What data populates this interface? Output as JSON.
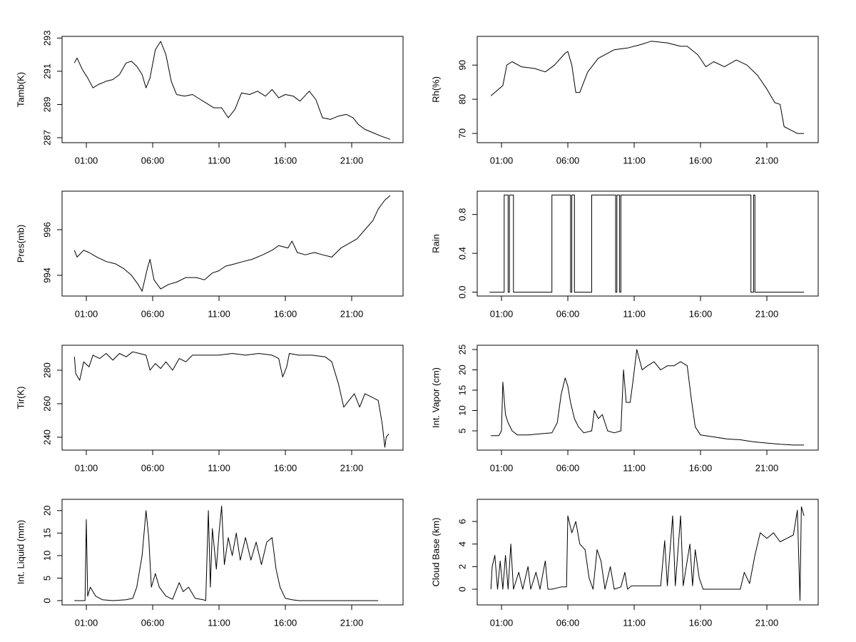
{
  "chart_data": [
    {
      "type": "line",
      "ylabel": "Tamb(K)",
      "color": "#000000",
      "x": [
        0.1,
        0.3,
        0.7,
        1.1,
        1.5,
        1.9,
        2.5,
        3.0,
        3.5,
        4.0,
        4.4,
        4.8,
        5.2,
        5.5,
        5.8,
        6.2,
        6.6,
        7.0,
        7.4,
        7.8,
        8.4,
        9.0,
        9.6,
        10.0,
        10.6,
        11.2,
        11.7,
        12.2,
        12.7,
        13.3,
        13.9,
        14.5,
        15.0,
        15.5,
        16.0,
        16.6,
        17.1,
        17.8,
        18.3,
        18.8,
        19.4,
        20.0,
        20.6,
        21.1,
        21.5,
        22.0,
        22.6,
        23.2,
        23.9
      ],
      "values": [
        291.5,
        291.8,
        291.1,
        290.6,
        290.0,
        290.2,
        290.4,
        290.5,
        290.8,
        291.5,
        291.6,
        291.3,
        290.8,
        290.0,
        290.6,
        292.3,
        292.8,
        292.0,
        290.4,
        289.6,
        289.5,
        289.6,
        289.3,
        289.1,
        288.8,
        288.8,
        288.2,
        288.7,
        289.7,
        289.6,
        289.8,
        289.5,
        289.9,
        289.4,
        289.6,
        289.5,
        289.2,
        289.8,
        289.3,
        288.2,
        288.1,
        288.3,
        288.4,
        288.2,
        287.8,
        287.5,
        287.3,
        287.1,
        286.9
      ],
      "xlim": [
        -0.83,
        24.87
      ],
      "ylim": [
        286.7,
        293.1
      ],
      "yticks": [
        287,
        289,
        291,
        293
      ],
      "xticks": [
        {
          "value": 1,
          "label": "01:00"
        },
        {
          "value": 6,
          "label": "06:00"
        },
        {
          "value": 11,
          "label": "11:00"
        },
        {
          "value": 16,
          "label": "16:00"
        },
        {
          "value": 21,
          "label": "21:00"
        }
      ]
    },
    {
      "type": "line",
      "ylabel": "Rh(%)",
      "color": "#000000",
      "x": [
        0.2,
        0.8,
        1.1,
        1.4,
        1.8,
        2.5,
        3.5,
        4.3,
        5.0,
        5.8,
        6.0,
        6.3,
        6.6,
        6.9,
        7.5,
        8.3,
        9.5,
        10.5,
        11.5,
        12.3,
        13.5,
        14.5,
        15.0,
        15.8,
        16.4,
        17.0,
        17.8,
        18.7,
        19.5,
        20.3,
        21.0,
        21.6,
        22.0,
        22.3,
        22.8,
        23.3,
        23.8
      ],
      "values": [
        81,
        83,
        84,
        90,
        91,
        89.5,
        89,
        88,
        90,
        93.5,
        94,
        90,
        82,
        82,
        88,
        92,
        94.5,
        95,
        96,
        97,
        96.5,
        95.5,
        95.5,
        93,
        89.5,
        91,
        89.5,
        91.5,
        90,
        87,
        83,
        79,
        78.5,
        72,
        71,
        70,
        70
      ],
      "xlim": [
        -0.83,
        24.87
      ],
      "ylim": [
        67.3,
        98.4
      ],
      "yticks": [
        70,
        80,
        90
      ],
      "xticks": [
        {
          "value": 1,
          "label": "01:00"
        },
        {
          "value": 6,
          "label": "06:00"
        },
        {
          "value": 11,
          "label": "11:00"
        },
        {
          "value": 16,
          "label": "16:00"
        },
        {
          "value": 21,
          "label": "21:00"
        }
      ]
    },
    {
      "type": "line",
      "ylabel": "Pres(mb)",
      "color": "#000000",
      "x": [
        0.1,
        0.3,
        0.8,
        1.2,
        1.8,
        2.5,
        3.2,
        3.8,
        4.4,
        4.9,
        5.2,
        5.6,
        5.8,
        6.1,
        6.6,
        7.2,
        7.8,
        8.5,
        9.3,
        9.9,
        10.5,
        11.0,
        11.5,
        12.2,
        12.8,
        13.5,
        14.3,
        15.0,
        15.5,
        16.2,
        16.5,
        16.9,
        17.5,
        18.2,
        18.8,
        19.5,
        20.2,
        20.8,
        21.4,
        22.0,
        22.6,
        23.0,
        23.5,
        23.9
      ],
      "values": [
        995.1,
        994.8,
        995.1,
        995.0,
        994.8,
        994.6,
        994.5,
        994.3,
        994.0,
        993.6,
        993.3,
        994.3,
        994.7,
        993.8,
        993.4,
        993.6,
        993.7,
        993.9,
        993.9,
        993.8,
        994.1,
        994.2,
        994.4,
        994.5,
        994.6,
        994.7,
        994.9,
        995.1,
        995.3,
        995.2,
        995.5,
        995.0,
        994.9,
        995.0,
        994.9,
        994.8,
        995.2,
        995.4,
        995.6,
        996.0,
        996.4,
        996.9,
        997.3,
        997.5
      ],
      "xlim": [
        -0.83,
        24.87
      ],
      "ylim": [
        993.09,
        997.69
      ],
      "yticks": [
        994,
        996
      ],
      "xticks": [
        {
          "value": 1,
          "label": "01:00"
        },
        {
          "value": 6,
          "label": "06:00"
        },
        {
          "value": 11,
          "label": "11:00"
        },
        {
          "value": 16,
          "label": "16:00"
        },
        {
          "value": 21,
          "label": "21:00"
        }
      ]
    },
    {
      "type": "line",
      "ylabel": "Rain",
      "color": "#000000",
      "x": [
        0.1,
        1.2,
        1.2,
        1.5,
        1.5,
        1.6,
        1.6,
        1.9,
        1.9,
        4.8,
        4.8,
        6.2,
        6.2,
        6.3,
        6.3,
        6.5,
        6.5,
        7.8,
        7.8,
        9.6,
        9.6,
        9.7,
        9.7,
        9.9,
        9.9,
        10.0,
        10.0,
        19.8,
        19.8,
        20.0,
        20.0,
        20.1,
        20.1,
        23.8
      ],
      "values": [
        0,
        0,
        1,
        1,
        0,
        0,
        1,
        1,
        0,
        0,
        1,
        1,
        0,
        0,
        1,
        1,
        0,
        0,
        1,
        1,
        0,
        0,
        1,
        1,
        0,
        0,
        1,
        1,
        0,
        0,
        1,
        1,
        0,
        0
      ],
      "xlim": [
        -0.83,
        24.87
      ],
      "ylim": [
        -0.04,
        1.04
      ],
      "yticks": [
        {
          "value": 0,
          "label": "0.0"
        },
        0.4,
        0.8
      ],
      "xticks": [
        {
          "value": 1,
          "label": "01:00"
        },
        {
          "value": 6,
          "label": "06:00"
        },
        {
          "value": 11,
          "label": "11:00"
        },
        {
          "value": 16,
          "label": "16:00"
        },
        {
          "value": 21,
          "label": "21:00"
        }
      ]
    },
    {
      "type": "line",
      "ylabel": "Tir(K)",
      "color": "#000000",
      "x": [
        0.1,
        0.2,
        0.5,
        0.8,
        1.2,
        1.5,
        2.0,
        2.5,
        3.0,
        3.5,
        4.0,
        4.5,
        5.0,
        5.5,
        5.8,
        6.2,
        6.6,
        7.0,
        7.5,
        8.0,
        8.5,
        9.0,
        10.0,
        11.0,
        12.0,
        13.0,
        14.0,
        15.0,
        15.5,
        15.8,
        16.1,
        16.3,
        17.0,
        18.0,
        19.0,
        19.5,
        20.0,
        20.4,
        20.8,
        21.2,
        21.6,
        22.0,
        22.5,
        23.0,
        23.3,
        23.5,
        23.6,
        23.8
      ],
      "values": [
        288,
        278,
        274,
        285,
        282,
        289,
        287,
        290,
        286,
        290,
        288,
        291,
        290,
        289,
        280,
        284,
        281,
        285,
        280,
        287,
        285,
        289,
        289,
        289,
        290,
        289,
        290,
        289,
        287,
        276,
        282,
        290,
        289,
        289,
        288,
        285,
        272,
        258,
        262,
        266,
        258,
        266,
        264,
        262,
        248,
        234,
        240,
        242
      ],
      "xlim": [
        -0.83,
        24.87
      ],
      "ylim": [
        232.3,
        294.9
      ],
      "yticks": [
        240,
        260,
        280
      ],
      "xticks": [
        {
          "value": 1,
          "label": "01:00"
        },
        {
          "value": 6,
          "label": "06:00"
        },
        {
          "value": 11,
          "label": "11:00"
        },
        {
          "value": 16,
          "label": "16:00"
        },
        {
          "value": 21,
          "label": "21:00"
        }
      ]
    },
    {
      "type": "line",
      "ylabel": "Int. Vapor (cm)",
      "color": "#000000",
      "x": [
        0.2,
        0.8,
        1.0,
        1.1,
        1.3,
        1.5,
        1.8,
        2.2,
        3.0,
        4.0,
        4.8,
        5.2,
        5.5,
        5.8,
        6.0,
        6.2,
        6.5,
        6.8,
        7.2,
        7.8,
        8.0,
        8.3,
        8.6,
        9.0,
        9.5,
        10.0,
        10.2,
        10.4,
        10.7,
        10.9,
        11.2,
        11.6,
        12.0,
        12.5,
        13.0,
        13.5,
        14.0,
        14.5,
        15.0,
        15.3,
        15.6,
        16.0,
        17.0,
        18.0,
        19.0,
        20.0,
        21.0,
        22.0,
        23.0,
        23.8
      ],
      "values": [
        3.8,
        3.8,
        5,
        17,
        9,
        7,
        5,
        4,
        4,
        4.3,
        4.5,
        7,
        14,
        18,
        16,
        12,
        8,
        6,
        4.5,
        5,
        10,
        8,
        9,
        5,
        4.5,
        5,
        20,
        12,
        12,
        17,
        25,
        20,
        21,
        22,
        20,
        21,
        21,
        22,
        21,
        13,
        6,
        4,
        3.5,
        3,
        2.8,
        2.3,
        2,
        1.7,
        1.5,
        1.5
      ],
      "xlim": [
        -0.83,
        24.87
      ],
      "ylim": [
        0.26,
        26.05
      ],
      "yticks": [
        5,
        10,
        15,
        20,
        25
      ],
      "xticks": [
        {
          "value": 1,
          "label": "01:00"
        },
        {
          "value": 6,
          "label": "06:00"
        },
        {
          "value": 11,
          "label": "11:00"
        },
        {
          "value": 16,
          "label": "16:00"
        },
        {
          "value": 21,
          "label": "21:00"
        }
      ]
    },
    {
      "type": "line",
      "ylabel": "Int. Liquid (mm)",
      "color": "#000000",
      "x": [
        0.1,
        0.9,
        1.0,
        1.1,
        1.3,
        1.7,
        2.2,
        3.0,
        4.0,
        4.5,
        4.8,
        5.2,
        5.5,
        5.7,
        5.9,
        6.2,
        6.5,
        7.0,
        7.5,
        8.0,
        8.3,
        8.7,
        9.2,
        9.8,
        10.0,
        10.2,
        10.35,
        10.5,
        10.8,
        11.0,
        11.2,
        11.4,
        11.7,
        12.0,
        12.3,
        12.6,
        13.0,
        13.4,
        13.8,
        14.2,
        14.6,
        15.0,
        15.3,
        15.6,
        16.0,
        16.5,
        17.0,
        20.0,
        23.0
      ],
      "values": [
        0,
        0,
        18,
        1,
        3,
        1,
        0.2,
        0,
        0.2,
        0.5,
        3,
        10,
        20,
        14,
        3,
        6,
        3,
        1,
        0.3,
        4,
        2,
        3,
        0.5,
        0.2,
        0,
        20,
        3,
        16,
        7,
        15,
        21,
        8,
        14,
        10,
        15,
        9,
        14,
        9,
        13,
        8,
        13,
        14,
        7,
        3,
        0.5,
        0.2,
        0,
        0,
        0
      ],
      "xlim": [
        -0.83,
        24.87
      ],
      "ylim": [
        -0.95,
        22.5
      ],
      "yticks": [
        0,
        5,
        10,
        15,
        20
      ],
      "xticks": [
        {
          "value": 1,
          "label": "01:00"
        },
        {
          "value": 6,
          "label": "06:00"
        },
        {
          "value": 11,
          "label": "11:00"
        },
        {
          "value": 16,
          "label": "16:00"
        },
        {
          "value": 21,
          "label": "21:00"
        }
      ]
    },
    {
      "type": "line",
      "ylabel": "Cloud Base (km)",
      "color": "#000000",
      "x": [
        0.2,
        0.3,
        0.5,
        0.7,
        0.9,
        1.1,
        1.3,
        1.5,
        1.7,
        1.9,
        2.3,
        2.6,
        3.0,
        3.2,
        3.6,
        3.9,
        4.3,
        4.5,
        4.8,
        5.5,
        5.9,
        6.0,
        6.3,
        6.6,
        6.9,
        7.3,
        7.6,
        7.9,
        8.2,
        8.5,
        8.8,
        9.2,
        9.5,
        10.0,
        10.3,
        10.5,
        10.8,
        13.0,
        13.3,
        13.5,
        13.9,
        14.1,
        14.5,
        14.7,
        15.2,
        15.4,
        15.6,
        15.9,
        16.2,
        17.0,
        18.0,
        19.0,
        19.3,
        19.7,
        20.1,
        20.5,
        21.0,
        21.5,
        22.0,
        22.5,
        23.0,
        23.3,
        23.5,
        23.6,
        23.8
      ],
      "values": [
        0,
        2,
        3,
        0,
        2.5,
        0,
        3,
        0,
        4,
        0,
        1.5,
        0,
        2,
        0,
        1.5,
        0,
        2.5,
        0,
        0,
        0.2,
        0.2,
        6.5,
        5,
        6,
        4,
        3.5,
        1,
        0,
        3.5,
        2.5,
        0,
        2,
        0,
        0.2,
        1.5,
        0,
        0.3,
        0.3,
        4.3,
        0.3,
        6.5,
        0.3,
        6.5,
        0.3,
        4,
        0.3,
        3.5,
        1,
        0,
        0,
        0,
        0,
        1.5,
        0.5,
        3,
        5,
        4.5,
        5,
        4.2,
        4.5,
        4.8,
        7,
        -1,
        7.3,
        6.5
      ],
      "xlim": [
        -0.83,
        24.87
      ],
      "ylim": [
        -1.39,
        7.96
      ],
      "yticks": [
        0,
        2,
        4,
        6
      ],
      "xticks": [
        {
          "value": 1,
          "label": "01:00"
        },
        {
          "value": 6,
          "label": "06:00"
        },
        {
          "value": 11,
          "label": "11:00"
        },
        {
          "value": 16,
          "label": "16:00"
        },
        {
          "value": 21,
          "label": "21:00"
        }
      ]
    }
  ]
}
